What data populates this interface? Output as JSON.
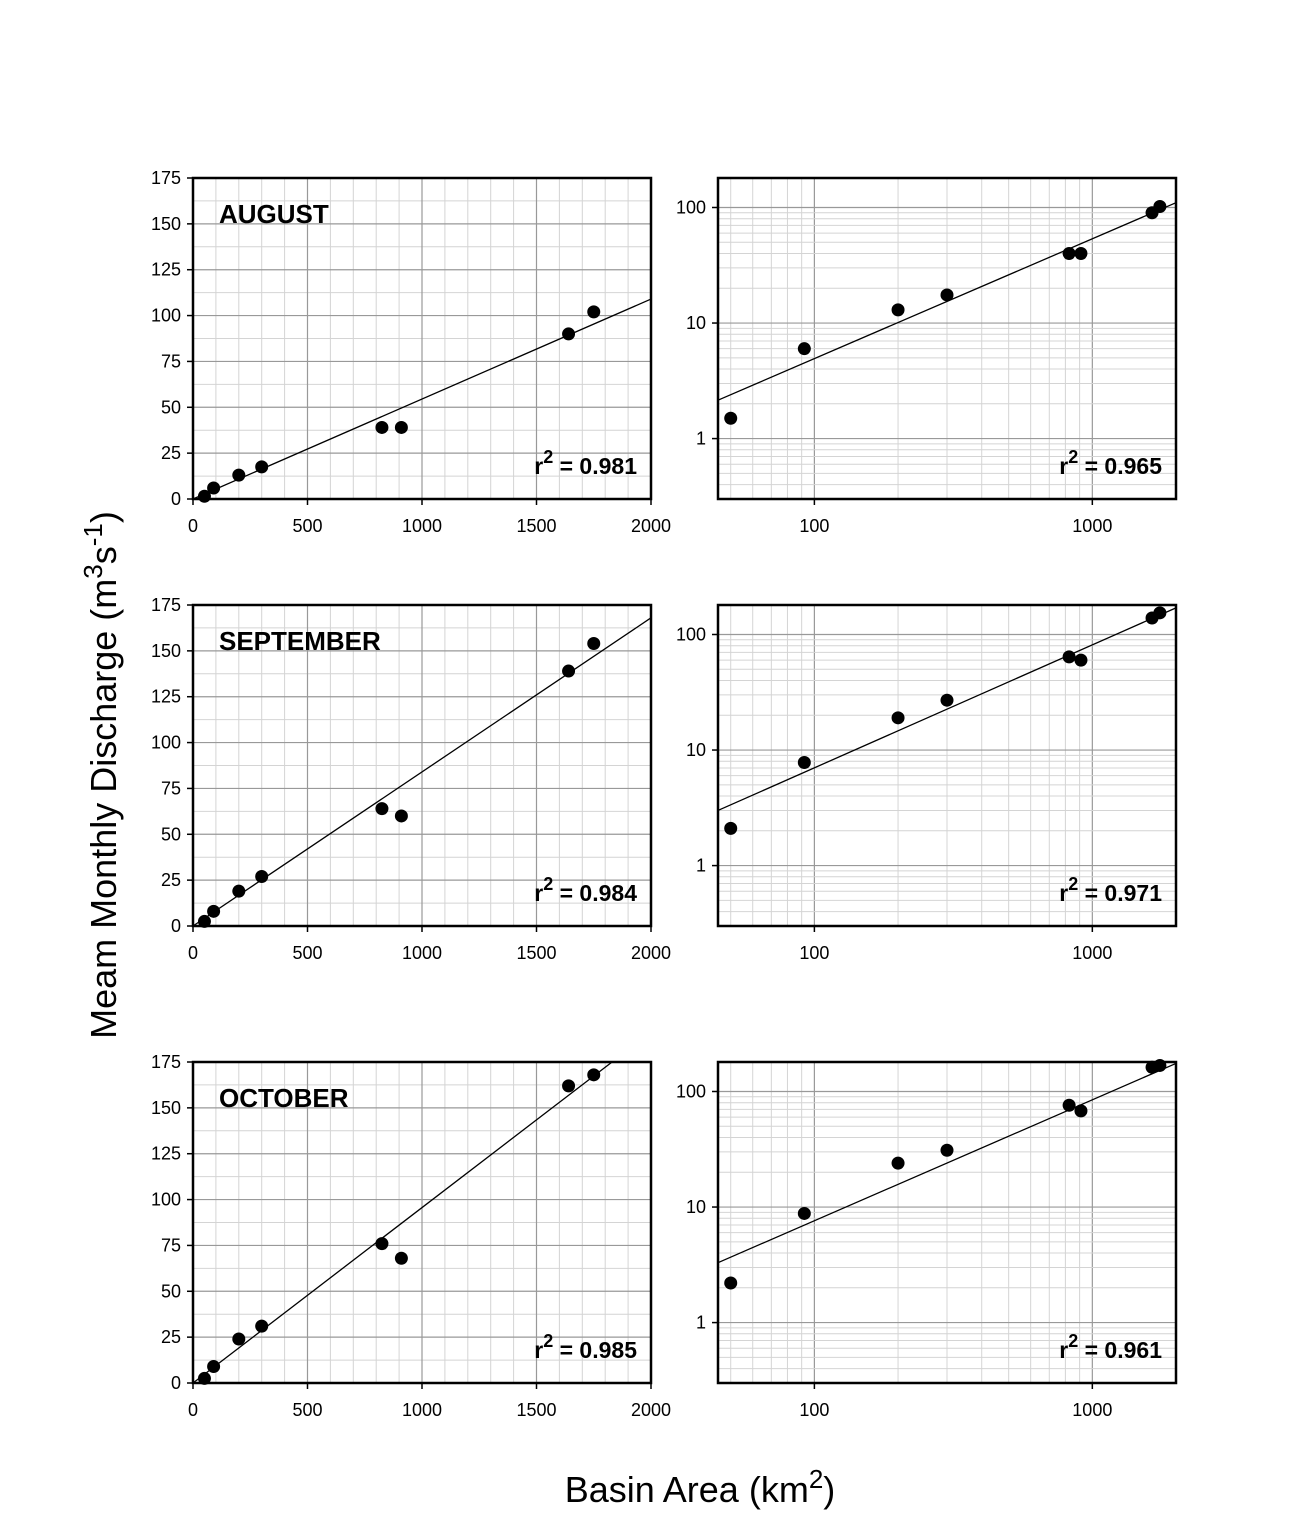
{
  "figure": {
    "ylabel": {
      "main": "Meam Monthly Discharge (m",
      "sup1": "3",
      "mid": "s",
      "sup2": "-1",
      "end": ")"
    },
    "xlabel": {
      "main": "Basin Area (km",
      "sup": "2",
      "end": ")"
    }
  },
  "colors": {
    "marker": "#000000",
    "grid": "#999999",
    "axis": "#000000"
  },
  "chart_data": [
    {
      "type": "scatter",
      "scale": "linear",
      "title": "AUGUST",
      "r2": "= 0.981",
      "xlim": [
        0,
        2000
      ],
      "ylim": [
        0,
        175
      ],
      "xticks": [
        0,
        500,
        1000,
        1500,
        2000
      ],
      "yticks": [
        0,
        25,
        50,
        75,
        100,
        125,
        150,
        175
      ],
      "x": [
        50,
        90,
        200,
        300,
        825,
        910,
        1640,
        1750
      ],
      "y": [
        1.5,
        6,
        13,
        17.5,
        39,
        39,
        90,
        102
      ],
      "fit": {
        "x": [
          0,
          2000
        ],
        "y": [
          0,
          109
        ]
      }
    },
    {
      "type": "scatter",
      "scale": "log",
      "title": "",
      "r2": "= 0.965",
      "xlim": [
        45,
        2000
      ],
      "ylim": [
        0.3,
        180
      ],
      "xticks": [
        100,
        1000
      ],
      "yticks": [
        1,
        10,
        100
      ],
      "x": [
        50,
        92,
        200,
        300,
        825,
        910,
        1640,
        1750
      ],
      "y": [
        1.5,
        6,
        13,
        17.5,
        40,
        40,
        90,
        102
      ],
      "fit": {
        "x": [
          45,
          2000
        ],
        "y": [
          2.15,
          110
        ]
      }
    },
    {
      "type": "scatter",
      "scale": "linear",
      "title": "SEPTEMBER",
      "r2": "= 0.984",
      "xlim": [
        0,
        2000
      ],
      "ylim": [
        0,
        175
      ],
      "xticks": [
        0,
        500,
        1000,
        1500,
        2000
      ],
      "yticks": [
        0,
        25,
        50,
        75,
        100,
        125,
        150,
        175
      ],
      "x": [
        50,
        90,
        200,
        300,
        825,
        910,
        1640,
        1750
      ],
      "y": [
        2.5,
        8,
        19,
        27,
        64,
        60,
        139,
        154
      ],
      "fit": {
        "x": [
          0,
          2000
        ],
        "y": [
          0,
          168
        ]
      }
    },
    {
      "type": "scatter",
      "scale": "log",
      "title": "",
      "r2": "= 0.971",
      "xlim": [
        45,
        2000
      ],
      "ylim": [
        0.3,
        180
      ],
      "xticks": [
        100,
        1000
      ],
      "yticks": [
        1,
        10,
        100
      ],
      "x": [
        50,
        92,
        200,
        300,
        825,
        910,
        1640,
        1750
      ],
      "y": [
        2.1,
        7.8,
        19,
        27,
        64,
        60,
        139,
        154
      ],
      "fit": {
        "x": [
          45,
          2000
        ],
        "y": [
          3.0,
          170
        ]
      }
    },
    {
      "type": "scatter",
      "scale": "linear",
      "title": "OCTOBER",
      "r2": "= 0.985",
      "xlim": [
        0,
        2000
      ],
      "ylim": [
        0,
        175
      ],
      "xticks": [
        0,
        500,
        1000,
        1500,
        2000
      ],
      "yticks": [
        0,
        25,
        50,
        75,
        100,
        125,
        150,
        175
      ],
      "x": [
        50,
        90,
        200,
        300,
        825,
        910,
        1640,
        1750
      ],
      "y": [
        2.5,
        9,
        24,
        31,
        76,
        68,
        162,
        168
      ],
      "fit": {
        "x": [
          0,
          1830
        ],
        "y": [
          0,
          175
        ]
      }
    },
    {
      "type": "scatter",
      "scale": "log",
      "title": "",
      "r2": "= 0.961",
      "xlim": [
        45,
        2000
      ],
      "ylim": [
        0.3,
        180
      ],
      "xticks": [
        100,
        1000
      ],
      "yticks": [
        1,
        10,
        100
      ],
      "x": [
        50,
        92,
        200,
        300,
        825,
        910,
        1640,
        1750
      ],
      "y": [
        2.2,
        8.8,
        24,
        31,
        76,
        68,
        162,
        168
      ],
      "fit": {
        "x": [
          45,
          2000
        ],
        "y": [
          3.3,
          175
        ]
      }
    }
  ]
}
